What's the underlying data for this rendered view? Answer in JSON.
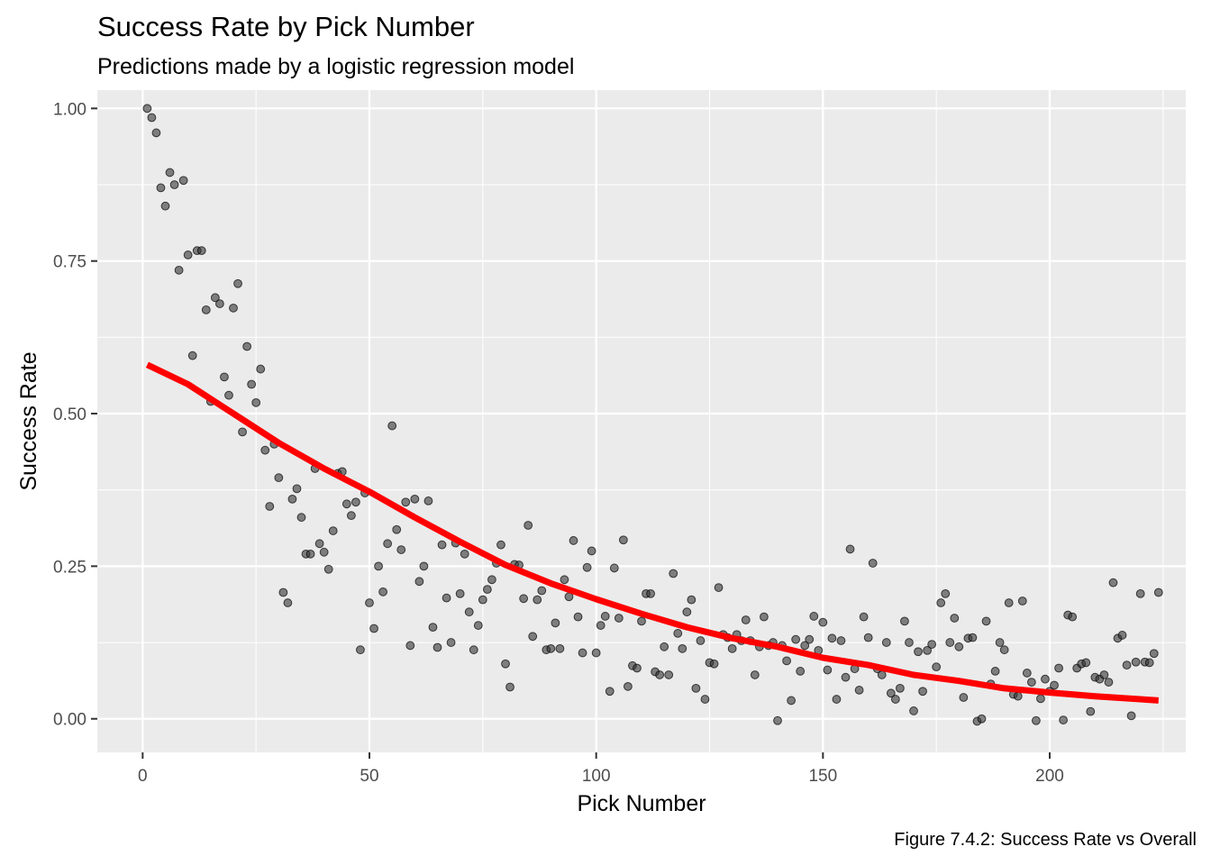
{
  "caption": "Figure 7.4.2: Success Rate vs Overall",
  "chart_data": {
    "type": "scatter",
    "title": "Success Rate by Pick Number",
    "subtitle": "Predictions made by a logistic regression model",
    "xlabel": "Pick Number",
    "ylabel": "Success Rate",
    "xlim": [
      -10,
      230
    ],
    "ylim": [
      -0.055,
      1.03
    ],
    "x_ticks": [
      0,
      50,
      100,
      150,
      200
    ],
    "x_tick_labels": [
      "0",
      "50",
      "100",
      "150",
      "200"
    ],
    "y_ticks": [
      0,
      0.25,
      0.5,
      0.75,
      1
    ],
    "y_tick_labels": [
      "0.00",
      "0.25",
      "0.50",
      "0.75",
      "1.00"
    ],
    "grid": true,
    "colors": {
      "panel": "#ebebeb",
      "grid": "#ffffff",
      "points": "#333333",
      "fit_line": "#ff0000"
    },
    "series": [
      {
        "mark": "point",
        "points": [
          [
            1,
            1.0
          ],
          [
            2,
            0.985
          ],
          [
            3,
            0.96
          ],
          [
            4,
            0.87
          ],
          [
            5,
            0.84
          ],
          [
            6,
            0.895
          ],
          [
            7,
            0.875
          ],
          [
            8,
            0.735
          ],
          [
            9,
            0.882
          ],
          [
            10,
            0.76
          ],
          [
            11,
            0.595
          ],
          [
            12,
            0.767
          ],
          [
            13,
            0.767
          ],
          [
            14,
            0.67
          ],
          [
            15,
            0.52
          ],
          [
            16,
            0.69
          ],
          [
            17,
            0.68
          ],
          [
            18,
            0.56
          ],
          [
            19,
            0.53
          ],
          [
            20,
            0.673
          ],
          [
            21,
            0.713
          ],
          [
            22,
            0.47
          ],
          [
            23,
            0.61
          ],
          [
            24,
            0.548
          ],
          [
            25,
            0.518
          ],
          [
            26,
            0.573
          ],
          [
            27,
            0.44
          ],
          [
            28,
            0.348
          ],
          [
            29,
            0.45
          ],
          [
            30,
            0.395
          ],
          [
            31,
            0.207
          ],
          [
            32,
            0.19
          ],
          [
            33,
            0.36
          ],
          [
            34,
            0.377
          ],
          [
            35,
            0.33
          ],
          [
            36,
            0.27
          ],
          [
            37,
            0.27
          ],
          [
            38,
            0.41
          ],
          [
            39,
            0.287
          ],
          [
            40,
            0.273
          ],
          [
            41,
            0.245
          ],
          [
            42,
            0.308
          ],
          [
            43,
            0.402
          ],
          [
            44,
            0.405
          ],
          [
            45,
            0.352
          ],
          [
            46,
            0.333
          ],
          [
            47,
            0.355
          ],
          [
            48,
            0.113
          ],
          [
            49,
            0.37
          ],
          [
            50,
            0.19
          ],
          [
            51,
            0.148
          ],
          [
            52,
            0.25
          ],
          [
            53,
            0.208
          ],
          [
            54,
            0.287
          ],
          [
            55,
            0.48
          ],
          [
            56,
            0.31
          ],
          [
            57,
            0.277
          ],
          [
            58,
            0.355
          ],
          [
            59,
            0.12
          ],
          [
            60,
            0.36
          ],
          [
            61,
            0.225
          ],
          [
            62,
            0.25
          ],
          [
            63,
            0.357
          ],
          [
            64,
            0.15
          ],
          [
            65,
            0.117
          ],
          [
            66,
            0.285
          ],
          [
            67,
            0.198
          ],
          [
            68,
            0.125
          ],
          [
            69,
            0.288
          ],
          [
            70,
            0.205
          ],
          [
            71,
            0.27
          ],
          [
            72,
            0.175
          ],
          [
            73,
            0.113
          ],
          [
            74,
            0.153
          ],
          [
            75,
            0.195
          ],
          [
            76,
            0.212
          ],
          [
            77,
            0.228
          ],
          [
            78,
            0.255
          ],
          [
            79,
            0.285
          ],
          [
            80,
            0.09
          ],
          [
            81,
            0.052
          ],
          [
            82,
            0.253
          ],
          [
            83,
            0.252
          ],
          [
            84,
            0.197
          ],
          [
            85,
            0.317
          ],
          [
            86,
            0.135
          ],
          [
            87,
            0.195
          ],
          [
            88,
            0.21
          ],
          [
            89,
            0.113
          ],
          [
            90,
            0.115
          ],
          [
            91,
            0.157
          ],
          [
            92,
            0.115
          ],
          [
            93,
            0.228
          ],
          [
            94,
            0.2
          ],
          [
            95,
            0.292
          ],
          [
            96,
            0.167
          ],
          [
            97,
            0.108
          ],
          [
            98,
            0.248
          ],
          [
            99,
            0.275
          ],
          [
            100,
            0.108
          ],
          [
            101,
            0.153
          ],
          [
            102,
            0.168
          ],
          [
            103,
            0.045
          ],
          [
            104,
            0.247
          ],
          [
            105,
            0.165
          ],
          [
            106,
            0.293
          ],
          [
            107,
            0.053
          ],
          [
            108,
            0.087
          ],
          [
            109,
            0.083
          ],
          [
            110,
            0.16
          ],
          [
            111,
            0.205
          ],
          [
            112,
            0.205
          ],
          [
            113,
            0.077
          ],
          [
            114,
            0.072
          ],
          [
            115,
            0.118
          ],
          [
            116,
            0.072
          ],
          [
            117,
            0.238
          ],
          [
            118,
            0.14
          ],
          [
            119,
            0.115
          ],
          [
            120,
            0.175
          ],
          [
            121,
            0.195
          ],
          [
            122,
            0.05
          ],
          [
            123,
            0.128
          ],
          [
            124,
            0.032
          ],
          [
            125,
            0.092
          ],
          [
            126,
            0.09
          ],
          [
            127,
            0.215
          ],
          [
            128,
            0.138
          ],
          [
            129,
            0.133
          ],
          [
            130,
            0.115
          ],
          [
            131,
            0.138
          ],
          [
            132,
            0.128
          ],
          [
            133,
            0.162
          ],
          [
            134,
            0.128
          ],
          [
            135,
            0.072
          ],
          [
            136,
            0.118
          ],
          [
            137,
            0.167
          ],
          [
            138,
            0.12
          ],
          [
            139,
            0.125
          ],
          [
            140,
            -0.003
          ],
          [
            141,
            0.12
          ],
          [
            142,
            0.095
          ],
          [
            143,
            0.03
          ],
          [
            144,
            0.13
          ],
          [
            145,
            0.078
          ],
          [
            146,
            0.12
          ],
          [
            147,
            0.13
          ],
          [
            148,
            0.168
          ],
          [
            149,
            0.112
          ],
          [
            150,
            0.158
          ],
          [
            151,
            0.08
          ],
          [
            152,
            0.132
          ],
          [
            153,
            0.032
          ],
          [
            154,
            0.128
          ],
          [
            155,
            0.068
          ],
          [
            156,
            0.278
          ],
          [
            157,
            0.082
          ],
          [
            158,
            0.047
          ],
          [
            159,
            0.167
          ],
          [
            160,
            0.133
          ],
          [
            161,
            0.255
          ],
          [
            162,
            0.082
          ],
          [
            163,
            0.072
          ],
          [
            164,
            0.125
          ],
          [
            165,
            0.042
          ],
          [
            166,
            0.032
          ],
          [
            167,
            0.05
          ],
          [
            168,
            0.16
          ],
          [
            169,
            0.125
          ],
          [
            170,
            0.013
          ],
          [
            171,
            0.11
          ],
          [
            172,
            0.045
          ],
          [
            173,
            0.112
          ],
          [
            174,
            0.122
          ],
          [
            175,
            0.085
          ],
          [
            176,
            0.19
          ],
          [
            177,
            0.205
          ],
          [
            178,
            0.125
          ],
          [
            179,
            0.165
          ],
          [
            180,
            0.118
          ],
          [
            181,
            0.035
          ],
          [
            182,
            0.132
          ],
          [
            183,
            0.133
          ],
          [
            184,
            -0.004
          ],
          [
            185,
            0.0
          ],
          [
            186,
            0.16
          ],
          [
            187,
            0.057
          ],
          [
            188,
            0.078
          ],
          [
            189,
            0.125
          ],
          [
            190,
            0.113
          ],
          [
            191,
            0.19
          ],
          [
            192,
            0.04
          ],
          [
            193,
            0.037
          ],
          [
            194,
            0.193
          ],
          [
            195,
            0.075
          ],
          [
            196,
            0.06
          ],
          [
            197,
            -0.003
          ],
          [
            198,
            0.033
          ],
          [
            199,
            0.065
          ],
          [
            200,
            0.045
          ],
          [
            201,
            0.055
          ],
          [
            202,
            0.083
          ],
          [
            203,
            -0.002
          ],
          [
            204,
            0.17
          ],
          [
            205,
            0.167
          ],
          [
            206,
            0.083
          ],
          [
            207,
            0.09
          ],
          [
            208,
            0.092
          ],
          [
            209,
            0.012
          ],
          [
            210,
            0.068
          ],
          [
            211,
            0.065
          ],
          [
            212,
            0.072
          ],
          [
            213,
            0.06
          ],
          [
            214,
            0.223
          ],
          [
            215,
            0.132
          ],
          [
            216,
            0.137
          ],
          [
            217,
            0.088
          ],
          [
            218,
            0.005
          ],
          [
            219,
            0.093
          ],
          [
            220,
            0.205
          ],
          [
            221,
            0.093
          ],
          [
            222,
            0.092
          ],
          [
            223,
            0.107
          ],
          [
            224,
            0.207
          ]
        ]
      },
      {
        "mark": "line",
        "fit": "logistic",
        "points": [
          [
            1,
            0.58
          ],
          [
            10,
            0.548
          ],
          [
            20,
            0.5
          ],
          [
            30,
            0.452
          ],
          [
            40,
            0.41
          ],
          [
            50,
            0.372
          ],
          [
            60,
            0.33
          ],
          [
            70,
            0.29
          ],
          [
            80,
            0.252
          ],
          [
            90,
            0.222
          ],
          [
            100,
            0.196
          ],
          [
            110,
            0.172
          ],
          [
            120,
            0.15
          ],
          [
            130,
            0.132
          ],
          [
            140,
            0.118
          ],
          [
            150,
            0.1
          ],
          [
            160,
            0.088
          ],
          [
            170,
            0.072
          ],
          [
            180,
            0.062
          ],
          [
            190,
            0.05
          ],
          [
            200,
            0.043
          ],
          [
            210,
            0.037
          ],
          [
            224,
            0.03
          ]
        ]
      }
    ]
  }
}
